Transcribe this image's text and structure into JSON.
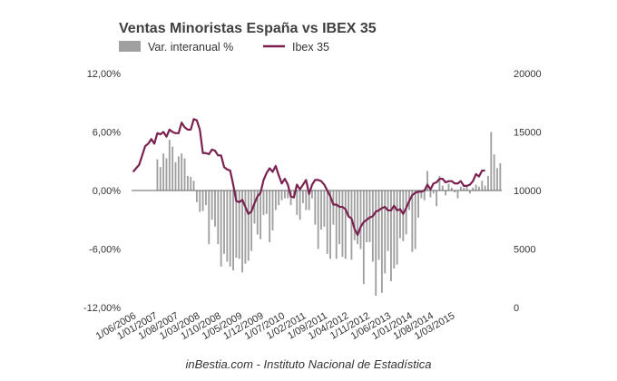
{
  "chart_data": {
    "type": "bar",
    "title": "Ventas Minoristas España vs IBEX 35",
    "legend_position": "top-left",
    "grid": false,
    "series": [
      {
        "name": "Var. interanual %",
        "kind": "bar",
        "axis": "left",
        "color": "#a0a0a0",
        "start": "2006-06",
        "values": [
          0,
          0,
          0,
          0,
          0,
          0,
          0,
          0,
          3.2,
          2.4,
          3.8,
          3.3,
          5.2,
          4.5,
          2.9,
          3.5,
          3.8,
          3.3,
          1.5,
          1.4,
          1.0,
          -1.2,
          -2.2,
          -2.1,
          -1.5,
          -5.5,
          -3.0,
          -3.7,
          -5.5,
          -7.8,
          -6.5,
          -7.3,
          -7.8,
          -8.2,
          -6.9,
          -7.0,
          -8.4,
          -7.5,
          -7.2,
          -6.2,
          -3.4,
          -4.5,
          -5.0,
          -2.5,
          -2.4,
          -5.3,
          -4.1,
          -2.0,
          -1.5,
          -1.0,
          -0.8,
          -0.8,
          -1.5,
          -0.5,
          -2.5,
          -3.0,
          -1.3,
          -2.0,
          -2.0,
          -0.8,
          -3.5,
          -6.0,
          -4.0,
          -3.7,
          -6.5,
          -7.0,
          -3.5,
          -7.0,
          -5.5,
          -6.8,
          -7.0,
          -2.8,
          -7.1,
          -5.1,
          -5.5,
          -6.0,
          -9.6,
          -5.3,
          -5.3,
          -7.3,
          -10.8,
          -7.1,
          -10.5,
          -8.5,
          -6.2,
          -9.3,
          -8.0,
          -7.6,
          -4.9,
          -5.2,
          -4.5,
          -2.0,
          -6.3,
          -6.0,
          -2.8,
          -0.8,
          -1.0,
          2.0,
          -0.7,
          -0.3,
          -1.6,
          1.5,
          0.5,
          -0.5,
          0.7,
          0.3,
          -0.2,
          -0.8,
          0.4,
          0.3,
          0.5,
          -0.3,
          0.3,
          0.6,
          0.4,
          1.0,
          0.5,
          1.5,
          6.0,
          3.7,
          2.3,
          2.8
        ]
      },
      {
        "name": "Ibex 35",
        "kind": "line",
        "axis": "right",
        "color": "#7b2150",
        "start": "2006-06",
        "values": [
          11600,
          11900,
          12200,
          13000,
          13800,
          14000,
          14400,
          14000,
          14900,
          14800,
          15000,
          14600,
          15200,
          15000,
          14900,
          14900,
          15800,
          15400,
          15200,
          15200,
          16100,
          16000,
          15200,
          13200,
          13200,
          13100,
          13500,
          13400,
          13000,
          13000,
          12000,
          11800,
          11700,
          10500,
          9100,
          9000,
          9200,
          8600,
          8000,
          8200,
          8900,
          9500,
          9800,
          10900,
          11500,
          11900,
          11600,
          12100,
          11300,
          10600,
          11000,
          10500,
          9500,
          9400,
          10500,
          10100,
          10500,
          10900,
          9700,
          10500,
          10900,
          10900,
          10800,
          10500,
          10000,
          9500,
          8800,
          8800,
          8600,
          8600,
          8400,
          7800,
          7600,
          6700,
          6200,
          6900,
          7300,
          7500,
          7700,
          7800,
          8200,
          8300,
          8500,
          8600,
          8300,
          8300,
          8700,
          8300,
          8400,
          8000,
          8500,
          9100,
          9600,
          9800,
          9900,
          9900,
          10000,
          10500,
          10100,
          10600,
          10700,
          11000,
          11000,
          10700,
          10800,
          10800,
          10600,
          10600,
          10800,
          10400,
          10400,
          10500,
          10800,
          11400,
          11200,
          11700,
          11700
        ]
      }
    ],
    "x_tick_labels": [
      "1/06/2006",
      "1/01/2007",
      "1/08/2007",
      "1/03/2008",
      "1/10/2008",
      "1/05/2009",
      "1/12/2009",
      "1/07/2010",
      "1/02/2011",
      "1/09/2011",
      "1/04/2012",
      "1/11/2012",
      "1/06/2013",
      "1/01/2014",
      "1/08/2014",
      "1/03/2015"
    ],
    "y_left": {
      "ylim": [
        -12,
        12
      ],
      "ticks": [
        "12,00%",
        "6,00%",
        "0,00%",
        "-6,00%",
        "-12,00%"
      ],
      "tick_values": [
        12,
        6,
        0,
        -6,
        -12
      ]
    },
    "y_right": {
      "ylim": [
        0,
        20000
      ],
      "ticks": [
        "20000",
        "15000",
        "10000",
        "5000",
        "0"
      ],
      "tick_values": [
        20000,
        15000,
        10000,
        5000,
        0
      ]
    },
    "source": "inBestia.com - Instituto Nacional de Estadística"
  }
}
